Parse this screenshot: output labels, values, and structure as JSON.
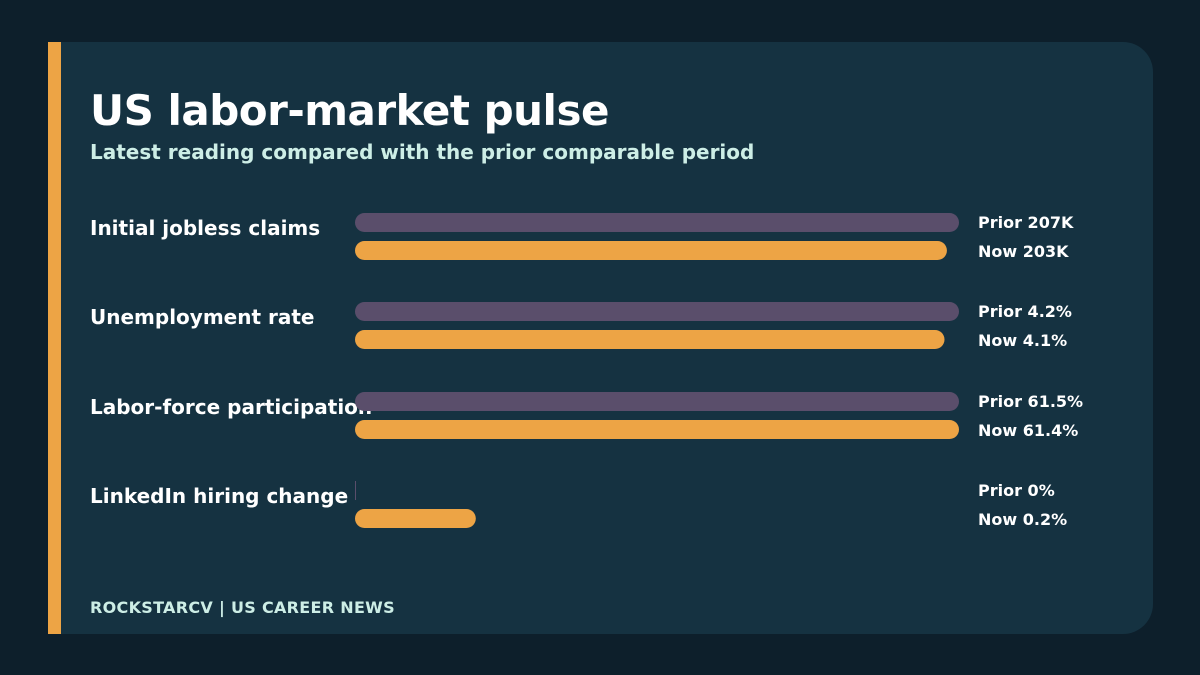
{
  "chart_data": {
    "type": "bar",
    "orientation": "horizontal",
    "title": "US labor-market pulse",
    "subtitle": "Latest reading compared with the prior comparable period",
    "categories": [
      "Initial jobless claims",
      "Unemployment rate",
      "Labor-force participation",
      "LinkedIn hiring change"
    ],
    "series": [
      {
        "name": "Prior",
        "color": "#5a4e6b",
        "display": [
          "Prior 207K",
          "Prior 4.2%",
          "Prior 61.5%",
          "Prior 0%"
        ],
        "fill_fraction": [
          1.0,
          1.0,
          1.0,
          0.0
        ]
      },
      {
        "name": "Now",
        "color": "#eda445",
        "display": [
          "Now 203K",
          "Now 4.1%",
          "Now 61.4%",
          "Now 0.2%"
        ],
        "fill_fraction": [
          0.98,
          0.976,
          1.0,
          0.2
        ]
      }
    ],
    "values": {
      "Prior": [
        207000,
        4.2,
        61.5,
        0
      ],
      "Now": [
        203000,
        4.1,
        61.4,
        0.2
      ]
    },
    "units": [
      "K",
      "%",
      "%",
      "%"
    ]
  },
  "footer": {
    "brand": "ROCKSTARCV  |  US CAREER NEWS"
  },
  "colors": {
    "background": "#0d1f2b",
    "card": "#153241",
    "accent": "#eda445",
    "prior_bar": "#5a4e6b",
    "now_bar": "#eda445",
    "subtitle_text": "#cdeee6"
  }
}
